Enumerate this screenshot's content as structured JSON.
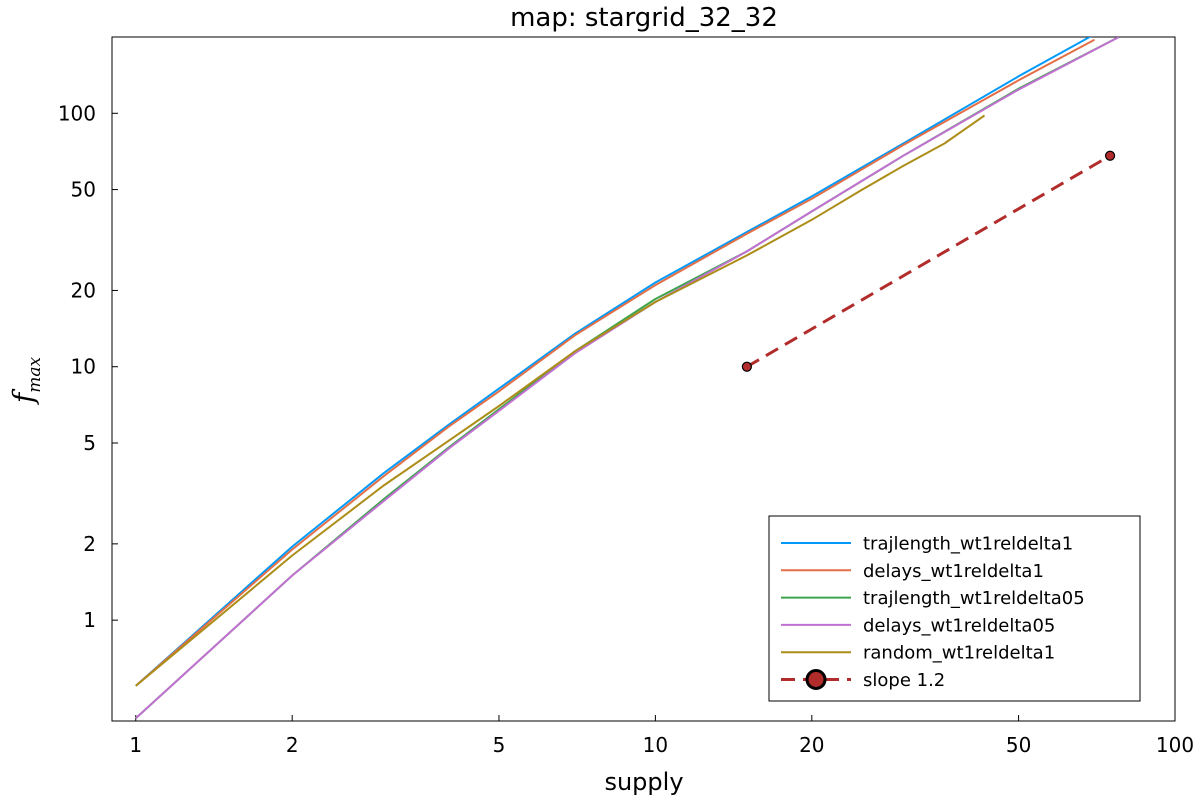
{
  "chart_data": {
    "type": "line",
    "title": "map: stargrid_32_32",
    "xlabel": "supply",
    "ylabel": {
      "base": "f",
      "subscript": "max"
    },
    "xscale": "log",
    "yscale": "log",
    "xlim": [
      0.9,
      100
    ],
    "ylim": [
      0.4,
      200
    ],
    "xticks": [
      {
        "value": 1,
        "label": "1"
      },
      {
        "value": 2,
        "label": "2"
      },
      {
        "value": 5,
        "label": "5"
      },
      {
        "value": 10,
        "label": "10"
      },
      {
        "value": 20,
        "label": "20"
      },
      {
        "value": 50,
        "label": "50"
      },
      {
        "value": 100,
        "label": "100"
      }
    ],
    "yticks": [
      {
        "value": 1,
        "label": "1"
      },
      {
        "value": 2,
        "label": "2"
      },
      {
        "value": 5,
        "label": "5"
      },
      {
        "value": 10,
        "label": "10"
      },
      {
        "value": 20,
        "label": "20"
      },
      {
        "value": 50,
        "label": "50"
      },
      {
        "value": 100,
        "label": "100"
      }
    ],
    "grid": false,
    "legend_position": "bottom-right",
    "series": [
      {
        "name": "trajlength_wt1reldelta1",
        "color": "#009AFA",
        "style": "solid",
        "x": [
          1,
          2,
          3,
          4,
          5,
          7,
          10,
          15,
          20,
          30,
          50,
          70
        ],
        "y": [
          0.55,
          1.95,
          3.8,
          5.9,
          8.2,
          13.5,
          21.5,
          34,
          47,
          76,
          140,
          205
        ]
      },
      {
        "name": "delays_wt1reldelta1",
        "color": "#E36F47",
        "style": "solid",
        "x": [
          1,
          2,
          3,
          4,
          5,
          7,
          10,
          15,
          20,
          30,
          50,
          70
        ],
        "y": [
          0.55,
          1.9,
          3.7,
          5.8,
          8.0,
          13.3,
          21.0,
          33.5,
          46,
          75,
          135,
          195
        ]
      },
      {
        "name": "trajlength_wt1reldelta05",
        "color": "#3EA44E",
        "style": "solid",
        "x": [
          1,
          2,
          3,
          4,
          5,
          7,
          10,
          15,
          20,
          30,
          50,
          78
        ],
        "y": [
          0.41,
          1.5,
          3.0,
          4.8,
          6.8,
          11.5,
          18.5,
          28.5,
          41,
          68,
          125,
          200
        ]
      },
      {
        "name": "delays_wt1reldelta05",
        "color": "#C271D2",
        "style": "solid",
        "x": [
          1,
          2,
          3,
          4,
          5,
          7,
          10,
          15,
          20,
          30,
          50,
          78
        ],
        "y": [
          0.41,
          1.5,
          2.95,
          4.75,
          6.7,
          11.3,
          18.0,
          28.5,
          41,
          68,
          124,
          200
        ]
      },
      {
        "name": "random_wt1reldelta1",
        "color": "#AC8D18",
        "style": "solid",
        "x": [
          1,
          2,
          3,
          4,
          5,
          7,
          10,
          15,
          20,
          25,
          30,
          36,
          43
        ],
        "y": [
          0.55,
          1.8,
          3.4,
          5.1,
          7.0,
          11.5,
          18.0,
          27.5,
          38,
          50,
          62,
          76,
          98
        ]
      },
      {
        "name": "slope 1.2",
        "color": "#B22C2C",
        "style": "dashed",
        "markers": true,
        "x": [
          15,
          75
        ],
        "y": [
          10,
          68
        ]
      }
    ]
  }
}
